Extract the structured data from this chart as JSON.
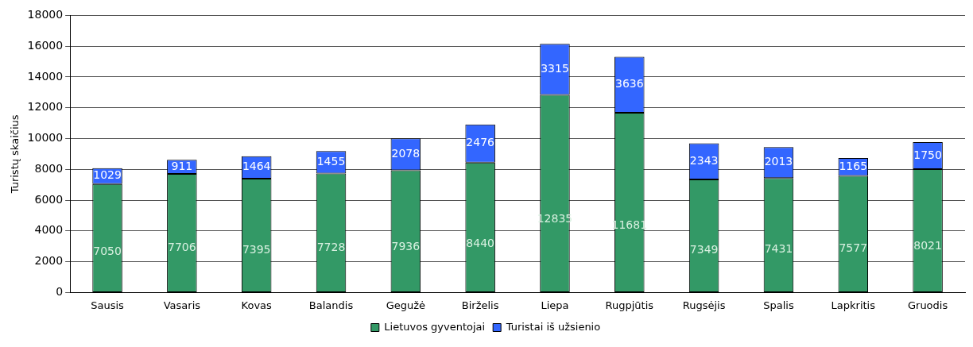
{
  "chart_data": {
    "type": "bar",
    "stacked": true,
    "ylabel": "Turistų skaičius",
    "categories": [
      "Sausis",
      "Vasaris",
      "Kovas",
      "Balandis",
      "Gegužė",
      "Birželis",
      "Liepa",
      "Rugpjūtis",
      "Rugsėjis",
      "Spalis",
      "Lapkritis",
      "Gruodis"
    ],
    "series": [
      {
        "name": "Lietuvos gyventojai",
        "color": "#339966",
        "values": [
          7050,
          7706,
          7395,
          7728,
          7936,
          8440,
          12835,
          11681,
          7349,
          7431,
          7577,
          8021
        ]
      },
      {
        "name": "Turistai iš užsienio",
        "color": "#3366ff",
        "values": [
          1029,
          911,
          1464,
          1455,
          2078,
          2476,
          3315,
          3636,
          2343,
          2013,
          1165,
          1750
        ]
      }
    ],
    "ylim": [
      0,
      18000
    ],
    "yticks": [
      0,
      2000,
      4000,
      6000,
      8000,
      10000,
      12000,
      14000,
      16000,
      18000
    ],
    "grid": "y",
    "legend": "bottom",
    "data_labels": true
  }
}
